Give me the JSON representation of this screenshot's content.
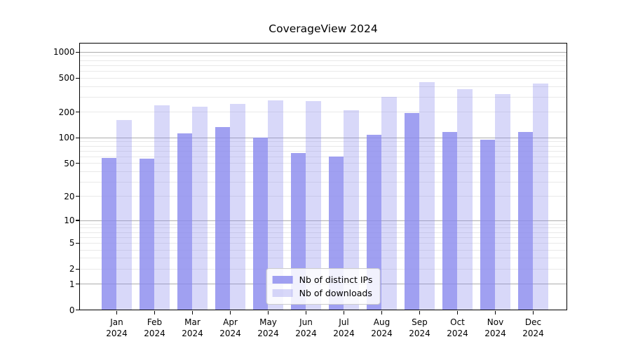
{
  "chart_data": {
    "type": "bar",
    "title": "CoverageView 2024",
    "categories": [
      "Jan",
      "Feb",
      "Mar",
      "Apr",
      "May",
      "Jun",
      "Jul",
      "Aug",
      "Sep",
      "Oct",
      "Nov",
      "Dec"
    ],
    "category_year": "2024",
    "series": [
      {
        "name": "Nb of distinct IPs",
        "values": [
          57,
          56,
          112,
          133,
          100,
          66,
          60,
          107,
          193,
          117,
          94,
          117
        ],
        "color": "rgba(136,136,238,0.8)"
      },
      {
        "name": "Nb of downloads",
        "values": [
          160,
          240,
          230,
          245,
          270,
          265,
          207,
          300,
          440,
          370,
          325,
          430
        ],
        "color": "rgba(136,136,238,0.33)"
      }
    ],
    "xlabel": "",
    "ylabel": "",
    "yscale": "log(1+v)",
    "ylim": [
      0,
      1250
    ],
    "yticks": [
      0,
      1,
      2,
      5,
      10,
      20,
      50,
      100,
      200,
      500,
      1000
    ],
    "grid_major_ticks": [
      1,
      10,
      100,
      1000
    ],
    "grid": "on",
    "legend_position": "lower center"
  },
  "colors": {
    "bar_dark_solid": "#a1a1f0",
    "bar_light_solid": "#d9d9fa",
    "grid_major": "#adadad",
    "grid_minor": "#e9e9e9",
    "spine": "#000000",
    "text": "#000000",
    "legend_border": "#cccccc"
  }
}
